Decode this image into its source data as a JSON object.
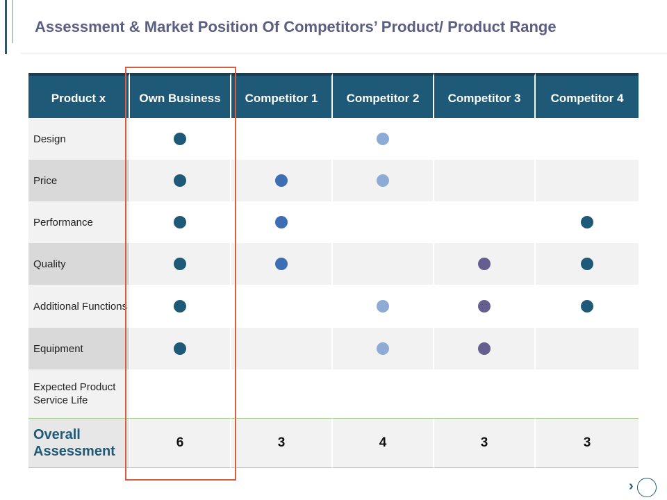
{
  "title": "Assessment & Market Position Of Competitors’ Product/ Product Range",
  "colors": {
    "own": "#1e5a78",
    "comp1": "#3d6db3",
    "comp2": "#8eabd6",
    "comp3": "#655f91",
    "comp4": "#1e5a78",
    "highlight": "#d4603f"
  },
  "table": {
    "headers": [
      "Product x",
      "Own Business",
      "Competitor 1",
      "Competitor 2",
      "Competitor 3",
      "Competitor 4"
    ],
    "rows": [
      {
        "label": "Design",
        "marks": [
          true,
          false,
          true,
          false,
          false
        ]
      },
      {
        "label": "Price",
        "marks": [
          true,
          true,
          true,
          false,
          false
        ]
      },
      {
        "label": "Performance",
        "marks": [
          true,
          true,
          false,
          false,
          true
        ]
      },
      {
        "label": "Quality",
        "marks": [
          true,
          true,
          false,
          true,
          true
        ]
      },
      {
        "label": "Additional Functions",
        "marks": [
          true,
          false,
          true,
          true,
          true
        ]
      },
      {
        "label": "Equipment",
        "marks": [
          true,
          false,
          true,
          true,
          false
        ]
      },
      {
        "label": "Expected Product Service Life",
        "marks": [
          false,
          false,
          false,
          false,
          false
        ]
      }
    ],
    "total_label": "Overall Assessment",
    "totals": [
      "6",
      "3",
      "4",
      "3",
      "3"
    ]
  },
  "nav": {
    "next_icon": "chevron-right-icon"
  }
}
